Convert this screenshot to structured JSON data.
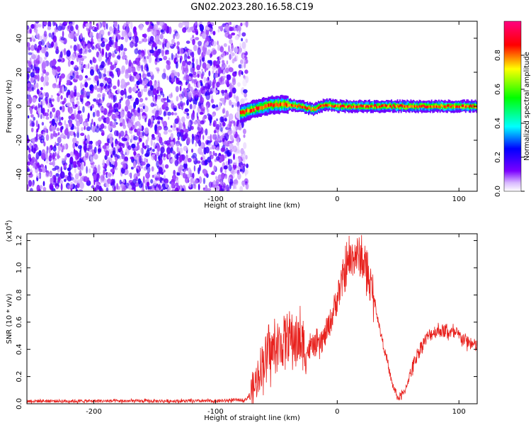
{
  "title": "GN02.2023.280.16.58.C19",
  "chart_data": [
    {
      "type": "heatmap",
      "xlabel": "Height of straight line (km)",
      "ylabel": "Frequency (Hz)",
      "xlim": [
        -255,
        115
      ],
      "ylim": [
        -50,
        50
      ],
      "xticks": [
        -200,
        -100,
        0,
        100
      ],
      "yticks": [
        -40,
        -20,
        0,
        20,
        40
      ],
      "ridge_line": {
        "x": [
          -80,
          -70,
          -60,
          -50,
          -40,
          -30,
          -20,
          -10,
          0,
          20,
          40,
          60,
          80,
          100,
          115
        ],
        "y": [
          -4,
          -2,
          0,
          1,
          1,
          0,
          -2,
          1,
          0,
          0,
          0,
          0,
          0,
          0,
          0
        ]
      },
      "colorbar": {
        "label": "Normalized spectral amplitude",
        "range": [
          0,
          1
        ],
        "ticks": [
          0.0,
          0.2,
          0.4,
          0.6,
          0.8
        ],
        "tick_labels": [
          "0.0",
          "0.2",
          "0.4",
          "0.6",
          "0.8"
        ],
        "colors": [
          "#ffffff",
          "#7b00ff",
          "#0000ff",
          "#00ffff",
          "#00ff00",
          "#ffff00",
          "#ff0000",
          "#ff0080"
        ]
      }
    },
    {
      "type": "line",
      "xlabel": "Height of straight line (km)",
      "ylabel": "SNR (10 * v/v)",
      "multiplier_label": "(x10",
      "multiplier_exp": "4",
      "multiplier_close": ")",
      "xlim": [
        -255,
        115
      ],
      "ylim": [
        0,
        1.25
      ],
      "xticks": [
        -200,
        -100,
        0,
        100
      ],
      "yticks": [
        0.0,
        0.2,
        0.4,
        0.6,
        0.8,
        1.0,
        1.2
      ],
      "ytick_labels": [
        "0.0",
        "0.2",
        "0.4",
        "0.6",
        "0.8",
        "1.0",
        "1.2"
      ],
      "color": "#e8201c",
      "x": [
        -255,
        -200,
        -150,
        -100,
        -75,
        -68,
        -64,
        -60,
        -55,
        -50,
        -45,
        -40,
        -35,
        -30,
        -25,
        -20,
        -15,
        -10,
        -5,
        0,
        5,
        10,
        15,
        20,
        25,
        30,
        35,
        40,
        45,
        50,
        55,
        60,
        65,
        70,
        75,
        80,
        85,
        90,
        95,
        100,
        105,
        110,
        115
      ],
      "y": [
        0.02,
        0.02,
        0.02,
        0.02,
        0.03,
        0.12,
        0.25,
        0.33,
        0.38,
        0.4,
        0.45,
        0.5,
        0.47,
        0.45,
        0.38,
        0.43,
        0.42,
        0.5,
        0.62,
        0.78,
        0.92,
        1.05,
        1.1,
        1.07,
        0.95,
        0.78,
        0.55,
        0.35,
        0.15,
        0.04,
        0.08,
        0.22,
        0.35,
        0.44,
        0.5,
        0.53,
        0.54,
        0.53,
        0.52,
        0.5,
        0.47,
        0.44,
        0.42
      ]
    }
  ]
}
